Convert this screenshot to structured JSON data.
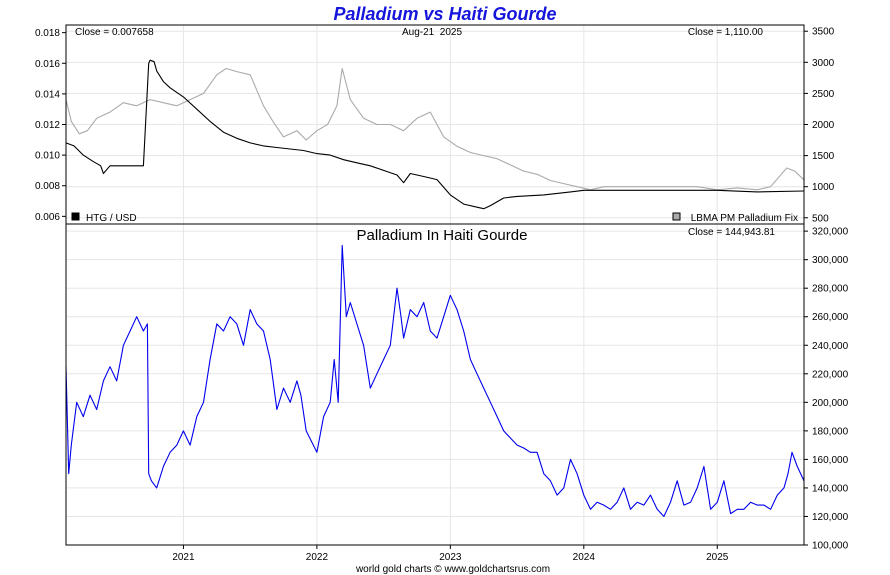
{
  "title": "Palladium vs Haiti Gourde",
  "footer": "world gold charts © www.goldchartsrus.com",
  "colors": {
    "title": "#1515dd",
    "htg_line": "#000000",
    "pd_line": "#aaaaaa",
    "ratio_line": "#0000ee",
    "grid": "#e6e6e6"
  },
  "chart_data": [
    {
      "type": "line",
      "title": "",
      "date_label": "Aug-21  2025",
      "left_close": "Close = 0.007658",
      "right_close": "Close = 1,110.00",
      "x_range": [
        2020.12,
        2025.65
      ],
      "x_ticks": [
        2021,
        2022,
        2023,
        2024,
        2025
      ],
      "y_left": {
        "range": [
          0.0055,
          0.0185
        ],
        "ticks": [
          0.006,
          0.008,
          0.01,
          0.012,
          0.014,
          0.016,
          0.018
        ],
        "labels": [
          "0.006",
          "0.008",
          "0.010",
          "0.012",
          "0.014",
          "0.016",
          "0.018"
        ]
      },
      "y_right": {
        "range": [
          400,
          3600
        ],
        "ticks": [
          500,
          1000,
          1500,
          2000,
          2500,
          3000,
          3500
        ],
        "labels": [
          "500",
          "1000",
          "1500",
          "2000",
          "2500",
          "3000",
          "3500"
        ]
      },
      "legend": {
        "left": "HTG / USD",
        "right": "LBMA PM Palladium Fix",
        "placement": "bottom"
      },
      "series": [
        {
          "name": "HTG / USD",
          "axis": "left",
          "x": [
            2020.12,
            2020.18,
            2020.25,
            2020.32,
            2020.38,
            2020.4,
            2020.45,
            2020.5,
            2020.55,
            2020.6,
            2020.7,
            2020.74,
            2020.75,
            2020.78,
            2020.8,
            2020.85,
            2020.9,
            2020.95,
            2021.0,
            2021.1,
            2021.2,
            2021.3,
            2021.4,
            2021.5,
            2021.6,
            2021.7,
            2021.8,
            2021.9,
            2022.0,
            2022.1,
            2022.2,
            2022.3,
            2022.4,
            2022.5,
            2022.6,
            2022.65,
            2022.7,
            2022.8,
            2022.9,
            2023.0,
            2023.1,
            2023.2,
            2023.25,
            2023.3,
            2023.4,
            2023.5,
            2023.7,
            2023.9,
            2024.0,
            2024.3,
            2024.6,
            2025.0,
            2025.3,
            2025.65
          ],
          "y": [
            0.0108,
            0.0106,
            0.01,
            0.0096,
            0.0093,
            0.0088,
            0.0093,
            0.0093,
            0.0093,
            0.0093,
            0.0093,
            0.016,
            0.0162,
            0.0161,
            0.0155,
            0.0148,
            0.0144,
            0.0141,
            0.0138,
            0.013,
            0.0122,
            0.0115,
            0.0111,
            0.0108,
            0.0106,
            0.0105,
            0.0104,
            0.0103,
            0.0101,
            0.01,
            0.0097,
            0.0095,
            0.0093,
            0.009,
            0.0087,
            0.0082,
            0.0088,
            0.0086,
            0.0084,
            0.0074,
            0.0068,
            0.0066,
            0.0065,
            0.0067,
            0.0072,
            0.0073,
            0.0074,
            0.0076,
            0.0077,
            0.0077,
            0.0077,
            0.0077,
            0.0076,
            0.007658
          ]
        },
        {
          "name": "LBMA PM Palladium Fix",
          "axis": "right",
          "x": [
            2020.12,
            2020.16,
            2020.22,
            2020.28,
            2020.35,
            2020.45,
            2020.55,
            2020.65,
            2020.75,
            2020.85,
            2020.95,
            2021.05,
            2021.15,
            2021.25,
            2021.32,
            2021.4,
            2021.5,
            2021.6,
            2021.67,
            2021.75,
            2021.85,
            2021.92,
            2022.0,
            2022.08,
            2022.15,
            2022.19,
            2022.25,
            2022.35,
            2022.45,
            2022.55,
            2022.65,
            2022.75,
            2022.85,
            2022.95,
            2023.05,
            2023.15,
            2023.25,
            2023.35,
            2023.45,
            2023.55,
            2023.65,
            2023.75,
            2023.85,
            2023.95,
            2024.05,
            2024.15,
            2024.25,
            2024.4,
            2024.55,
            2024.7,
            2024.85,
            2025.0,
            2025.15,
            2025.3,
            2025.4,
            2025.52,
            2025.58,
            2025.65
          ],
          "y": [
            2400,
            2050,
            1850,
            1900,
            2100,
            2200,
            2350,
            2300,
            2400,
            2350,
            2300,
            2400,
            2500,
            2800,
            2900,
            2850,
            2800,
            2300,
            2050,
            1800,
            1900,
            1750,
            1900,
            2000,
            2300,
            2900,
            2400,
            2100,
            2000,
            2000,
            1900,
            2100,
            2200,
            1800,
            1650,
            1550,
            1500,
            1450,
            1350,
            1250,
            1200,
            1100,
            1050,
            1000,
            950,
            1000,
            1000,
            1000,
            1000,
            1000,
            1000,
            950,
            980,
            950,
            1000,
            1300,
            1250,
            1110
          ]
        }
      ]
    },
    {
      "type": "line",
      "title": "Palladium In Haiti Gourde",
      "close_label": "Close = 144,943.81",
      "x_range": [
        2020.12,
        2025.65
      ],
      "x_ticks": [
        2021,
        2022,
        2023,
        2024,
        2025
      ],
      "x_tick_labels": [
        "2021",
        "2022",
        "2023",
        "2024",
        "2025"
      ],
      "y_right": {
        "range": [
          100000,
          325000
        ],
        "ticks": [
          100000,
          120000,
          140000,
          160000,
          180000,
          200000,
          220000,
          240000,
          260000,
          280000,
          300000,
          320000
        ],
        "labels": [
          "100,000",
          "120,000",
          "140,000",
          "160,000",
          "180,000",
          "200,000",
          "220,000",
          "240,000",
          "260,000",
          "280,000",
          "300,000",
          "320,000"
        ]
      },
      "series": [
        {
          "name": "Palladium In Haiti Gourde",
          "axis": "right",
          "x": [
            2020.12,
            2020.14,
            2020.16,
            2020.2,
            2020.25,
            2020.3,
            2020.35,
            2020.4,
            2020.45,
            2020.5,
            2020.55,
            2020.6,
            2020.65,
            2020.7,
            2020.73,
            2020.74,
            2020.76,
            2020.8,
            2020.85,
            2020.9,
            2020.95,
            2021.0,
            2021.05,
            2021.1,
            2021.15,
            2021.2,
            2021.25,
            2021.3,
            2021.35,
            2021.4,
            2021.45,
            2021.5,
            2021.55,
            2021.6,
            2021.65,
            2021.7,
            2021.75,
            2021.8,
            2021.85,
            2021.88,
            2021.92,
            2022.0,
            2022.05,
            2022.1,
            2022.13,
            2022.16,
            2022.19,
            2022.22,
            2022.25,
            2022.3,
            2022.35,
            2022.4,
            2022.45,
            2022.5,
            2022.55,
            2022.6,
            2022.63,
            2022.65,
            2022.7,
            2022.75,
            2022.8,
            2022.85,
            2022.9,
            2022.95,
            2023.0,
            2023.05,
            2023.1,
            2023.15,
            2023.2,
            2023.25,
            2023.3,
            2023.35,
            2023.4,
            2023.45,
            2023.5,
            2023.55,
            2023.6,
            2023.65,
            2023.7,
            2023.75,
            2023.8,
            2023.85,
            2023.9,
            2023.95,
            2024.0,
            2024.05,
            2024.1,
            2024.15,
            2024.2,
            2024.25,
            2024.3,
            2024.35,
            2024.4,
            2024.45,
            2024.5,
            2024.55,
            2024.6,
            2024.65,
            2024.7,
            2024.75,
            2024.8,
            2024.85,
            2024.9,
            2024.95,
            2025.0,
            2025.05,
            2025.1,
            2025.15,
            2025.2,
            2025.25,
            2025.3,
            2025.35,
            2025.4,
            2025.45,
            2025.5,
            2025.53,
            2025.56,
            2025.6,
            2025.65
          ],
          "y": [
            225000,
            150000,
            170000,
            200000,
            190000,
            205000,
            195000,
            215000,
            225000,
            215000,
            240000,
            250000,
            260000,
            250000,
            255000,
            150000,
            145000,
            140000,
            155000,
            165000,
            170000,
            180000,
            170000,
            190000,
            200000,
            230000,
            255000,
            250000,
            260000,
            255000,
            240000,
            265000,
            255000,
            250000,
            230000,
            195000,
            210000,
            200000,
            215000,
            205000,
            180000,
            165000,
            190000,
            200000,
            230000,
            200000,
            310000,
            260000,
            270000,
            255000,
            240000,
            210000,
            220000,
            230000,
            240000,
            280000,
            260000,
            245000,
            265000,
            260000,
            270000,
            250000,
            245000,
            260000,
            275000,
            265000,
            250000,
            230000,
            220000,
            210000,
            200000,
            190000,
            180000,
            175000,
            170000,
            168000,
            165000,
            165000,
            150000,
            145000,
            135000,
            140000,
            160000,
            150000,
            135000,
            125000,
            130000,
            128000,
            125000,
            130000,
            140000,
            125000,
            130000,
            128000,
            135000,
            125000,
            120000,
            130000,
            145000,
            128000,
            130000,
            140000,
            155000,
            125000,
            130000,
            145000,
            122000,
            125000,
            125000,
            130000,
            128000,
            128000,
            125000,
            135000,
            140000,
            150000,
            165000,
            155000,
            144944
          ]
        }
      ]
    }
  ]
}
